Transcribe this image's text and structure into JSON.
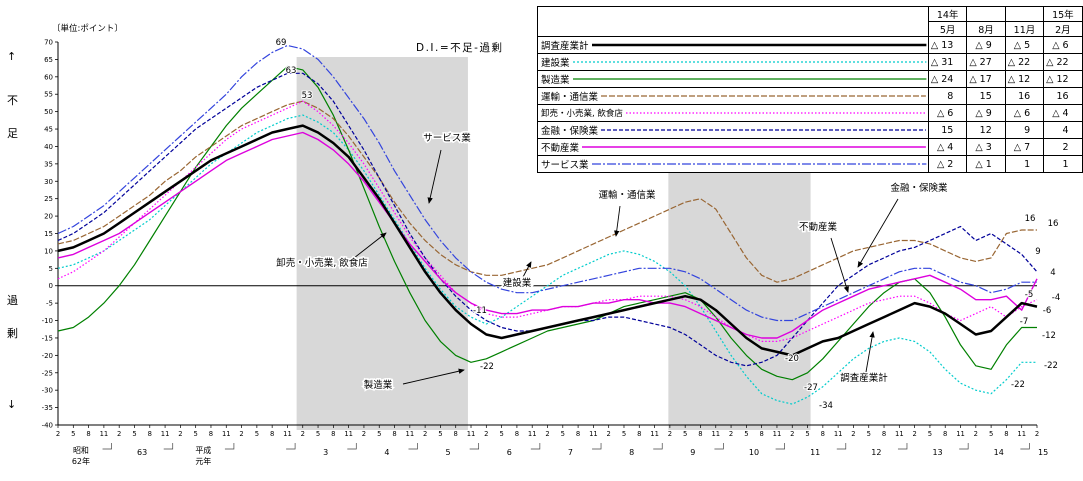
{
  "labels": {
    "unit": "〔単位:ポイント〕",
    "di_note": "D.I.=不足-過剰",
    "axis_direction": [
      "↑",
      "不",
      "足",
      "過",
      "剰",
      "↓"
    ]
  },
  "table": {
    "col_headers": {
      "year_left": "14年",
      "m1": "5月",
      "m2": "8月",
      "m3": "11月",
      "year_right": "15年",
      "m4": "2月"
    },
    "rows": [
      {
        "name": "調査産業計",
        "values": [
          "△ 13",
          "△ 9",
          "△ 5",
          "△ 6"
        ]
      },
      {
        "name": "建設業",
        "values": [
          "△ 31",
          "△ 27",
          "△ 22",
          "△ 22"
        ]
      },
      {
        "name": "製造業",
        "values": [
          "△ 24",
          "△ 17",
          "△ 12",
          "△ 12"
        ]
      },
      {
        "name": "運輸・通信業",
        "values": [
          "8",
          "15",
          "16",
          "16"
        ]
      },
      {
        "name": "卸売・小売業, 飲食店",
        "values": [
          "△ 6",
          "△ 9",
          "△ 6",
          "△ 4"
        ]
      },
      {
        "name": "金融・保険業",
        "values": [
          "15",
          "12",
          "9",
          "4"
        ]
      },
      {
        "name": "不動産業",
        "values": [
          "△ 4",
          "△ 3",
          "△ 7",
          "2"
        ]
      },
      {
        "name": "サービス業",
        "values": [
          "△ 2",
          "△ 1",
          "1",
          "1"
        ]
      }
    ]
  },
  "chart_data": {
    "type": "line",
    "title": "D.I.=不足-過剰",
    "ylabel": "ポイント",
    "y_axis": {
      "min": -40,
      "max": 70,
      "step": 5
    },
    "x_axis": {
      "count": 65,
      "quarters": [
        "2",
        "5",
        "8",
        "11"
      ],
      "start": "昭和62年2月",
      "end": "平成15年2月",
      "era_labels": [
        {
          "t": "昭和",
          "t2": "62年",
          "i": 1.5
        },
        {
          "t": "63",
          "i": 5.5
        },
        {
          "t": "平成",
          "t2": "元年",
          "i": 9.5
        },
        {
          "t": "3",
          "i": 17.5
        },
        {
          "t": "4",
          "i": 21.5
        },
        {
          "t": "5",
          "i": 25.5
        },
        {
          "t": "6",
          "i": 29.5
        },
        {
          "t": "7",
          "i": 33.5
        },
        {
          "t": "8",
          "i": 37.5
        },
        {
          "t": "9",
          "i": 41.5
        },
        {
          "t": "10",
          "i": 45.5
        },
        {
          "t": "11",
          "i": 49.5
        },
        {
          "t": "12",
          "i": 53.5
        },
        {
          "t": "13",
          "i": 57.5
        },
        {
          "t": "14",
          "i": 61.5
        },
        {
          "t": "15",
          "i": 64.4
        }
      ]
    },
    "bands": [
      {
        "from": 15.6,
        "to": 26.8
      },
      {
        "from": 39.9,
        "to": 49.2
      }
    ],
    "colors": {
      "band": "#d8d8d8",
      "axis": "#000000"
    },
    "series": [
      {
        "key": "total",
        "name": "調査産業計",
        "color": "#000000",
        "dash": "",
        "width": 2.5,
        "values": [
          10,
          11,
          13,
          15,
          18,
          21,
          24,
          27,
          30,
          33,
          36,
          38,
          40,
          42,
          44,
          45,
          46,
          44,
          41,
          37,
          31,
          25,
          18,
          11,
          4,
          -2,
          -7,
          -11,
          -14,
          -15,
          -14,
          -13,
          -12,
          -11,
          -10,
          -9,
          -8,
          -7,
          -6,
          -5,
          -4,
          -3,
          -4,
          -7,
          -11,
          -15,
          -18,
          -19,
          -20,
          -18,
          -16,
          -15,
          -13,
          -11,
          -9,
          -7,
          -5,
          -6,
          -8,
          -11,
          -14,
          -13,
          -9,
          -5,
          -6
        ]
      },
      {
        "key": "construction",
        "name": "建設業",
        "color": "#00cccc",
        "dash": "2,2",
        "width": 1.2,
        "values": [
          5,
          6,
          8,
          10,
          13,
          16,
          19,
          23,
          27,
          31,
          35,
          38,
          41,
          44,
          46,
          48,
          49,
          47,
          44,
          39,
          33,
          26,
          19,
          12,
          5,
          -1,
          -6,
          -9,
          -11,
          -9,
          -6,
          -3,
          0,
          3,
          5,
          7,
          9,
          10,
          9,
          7,
          4,
          0,
          -6,
          -13,
          -20,
          -26,
          -31,
          -33,
          -34,
          -32,
          -29,
          -25,
          -21,
          -18,
          -16,
          -15,
          -16,
          -19,
          -24,
          -28,
          -30,
          -31,
          -27,
          -22,
          -22
        ]
      },
      {
        "key": "manufacturing",
        "name": "製造業",
        "color": "#008000",
        "dash": "",
        "width": 1.2,
        "values": [
          -13,
          -12,
          -9,
          -5,
          0,
          6,
          13,
          20,
          27,
          34,
          40,
          46,
          51,
          55,
          59,
          63,
          62,
          57,
          49,
          39,
          28,
          17,
          7,
          -2,
          -10,
          -16,
          -20,
          -22,
          -21,
          -19,
          -17,
          -15,
          -13,
          -12,
          -11,
          -10,
          -8,
          -6,
          -5,
          -4,
          -3,
          -2,
          -4,
          -9,
          -15,
          -20,
          -24,
          -26,
          -27,
          -25,
          -21,
          -16,
          -11,
          -6,
          -2,
          1,
          2,
          -2,
          -9,
          -17,
          -23,
          -24,
          -17,
          -12,
          -12
        ]
      },
      {
        "key": "transport-communication",
        "name": "運輸・通信業",
        "color": "#996633",
        "dash": "6,2",
        "width": 1.2,
        "values": [
          12,
          13,
          15,
          17,
          20,
          23,
          26,
          30,
          33,
          37,
          40,
          43,
          46,
          48,
          50,
          52,
          53,
          51,
          48,
          43,
          37,
          31,
          24,
          18,
          13,
          9,
          6,
          4,
          3,
          3,
          4,
          5,
          6,
          8,
          10,
          12,
          14,
          16,
          18,
          20,
          22,
          24,
          25,
          22,
          15,
          8,
          3,
          1,
          2,
          4,
          6,
          8,
          10,
          11,
          12,
          13,
          13,
          12,
          10,
          8,
          7,
          8,
          15,
          16,
          16
        ]
      },
      {
        "key": "wholesale-retail-restaurants",
        "name": "卸売・小売業, 飲食店",
        "color": "#ff00ff",
        "dash": "1.5,2",
        "width": 1.2,
        "values": [
          2,
          4,
          7,
          10,
          14,
          18,
          22,
          26,
          30,
          34,
          38,
          42,
          45,
          47,
          49,
          51,
          53,
          50,
          46,
          41,
          35,
          28,
          21,
          14,
          8,
          3,
          -2,
          -5,
          -8,
          -9,
          -9,
          -8,
          -7,
          -6,
          -6,
          -5,
          -4,
          -4,
          -3,
          -3,
          -3,
          -4,
          -6,
          -9,
          -12,
          -14,
          -16,
          -16,
          -15,
          -13,
          -11,
          -9,
          -7,
          -5,
          -4,
          -3,
          -3,
          -5,
          -8,
          -10,
          -8,
          -6,
          -9,
          -6,
          -4
        ]
      },
      {
        "key": "finance-insurance",
        "name": "金融・保険業",
        "color": "#000099",
        "dash": "4,2",
        "width": 1.2,
        "values": [
          13,
          15,
          18,
          21,
          25,
          29,
          33,
          37,
          41,
          45,
          48,
          51,
          54,
          57,
          59,
          61,
          61,
          58,
          53,
          46,
          39,
          31,
          23,
          15,
          8,
          2,
          -3,
          -7,
          -10,
          -12,
          -13,
          -13,
          -12,
          -11,
          -10,
          -10,
          -9,
          -9,
          -10,
          -11,
          -12,
          -14,
          -17,
          -20,
          -22,
          -23,
          -22,
          -20,
          -15,
          -10,
          -5,
          0,
          3,
          6,
          8,
          10,
          11,
          13,
          15,
          17,
          13,
          15,
          12,
          9,
          4
        ]
      },
      {
        "key": "real-estate",
        "name": "不動産業",
        "color": "#dd00dd",
        "dash": "",
        "width": 1.4,
        "values": [
          8,
          9,
          11,
          13,
          15,
          18,
          21,
          24,
          27,
          30,
          33,
          36,
          38,
          40,
          42,
          43,
          44,
          42,
          39,
          35,
          30,
          24,
          18,
          12,
          7,
          2,
          -2,
          -5,
          -7,
          -8,
          -8,
          -7,
          -7,
          -6,
          -6,
          -5,
          -5,
          -4,
          -4,
          -5,
          -5,
          -6,
          -8,
          -10,
          -12,
          -14,
          -15,
          -15,
          -13,
          -10,
          -7,
          -5,
          -3,
          -1,
          0,
          1,
          2,
          3,
          1,
          -1,
          -4,
          -4,
          -3,
          -7,
          2
        ]
      },
      {
        "key": "services",
        "name": "サービス業",
        "color": "#3344dd",
        "dash": "9,2,2,2",
        "width": 1.2,
        "values": [
          15,
          17,
          20,
          23,
          27,
          31,
          35,
          39,
          43,
          47,
          51,
          55,
          60,
          64,
          67,
          69,
          68,
          65,
          60,
          54,
          48,
          41,
          33,
          26,
          19,
          13,
          8,
          4,
          1,
          -1,
          -2,
          -2,
          -1,
          0,
          1,
          2,
          3,
          4,
          5,
          5,
          5,
          4,
          2,
          -1,
          -4,
          -7,
          -9,
          -10,
          -10,
          -8,
          -6,
          -4,
          -2,
          0,
          2,
          4,
          5,
          5,
          3,
          1,
          0,
          -2,
          -1,
          1,
          1
        ]
      }
    ],
    "point_labels": [
      {
        "t": "69",
        "x": 281,
        "y": 45
      },
      {
        "t": "63",
        "x": 291,
        "y": 73
      },
      {
        "t": "53",
        "x": 307,
        "y": 98
      },
      {
        "t": "-11",
        "x": 480,
        "y": 313
      },
      {
        "t": "-22",
        "x": 487,
        "y": 369
      },
      {
        "t": "-20",
        "x": 792,
        "y": 361
      },
      {
        "t": "-27",
        "x": 811,
        "y": 390
      },
      {
        "t": "-34",
        "x": 826,
        "y": 408
      },
      {
        "t": "16",
        "x": 1030,
        "y": 221
      },
      {
        "t": "16",
        "x": 1053,
        "y": 226
      },
      {
        "t": "9",
        "x": 1038,
        "y": 254
      },
      {
        "t": "4",
        "x": 1053,
        "y": 275
      },
      {
        "t": "-5",
        "x": 1029,
        "y": 297
      },
      {
        "t": "-4",
        "x": 1056,
        "y": 300
      },
      {
        "t": "-6",
        "x": 1047,
        "y": 313
      },
      {
        "t": "-7",
        "x": 1024,
        "y": 324
      },
      {
        "t": "-12",
        "x": 1049,
        "y": 338
      },
      {
        "t": "-22",
        "x": 1051,
        "y": 368
      },
      {
        "t": "-22",
        "x": 1018,
        "y": 387
      }
    ],
    "annotations": [
      {
        "key": "services",
        "text": "サービス業",
        "tx": 447,
        "ty": 141,
        "x1": 441,
        "y1": 150,
        "x2": 429,
        "y2": 203
      },
      {
        "key": "wholesale-retail-restaurants",
        "text": "卸売・小売業, 飲食店",
        "tx": 322,
        "ty": 266,
        "x1": 354,
        "y1": 258,
        "x2": 386,
        "y2": 233
      },
      {
        "key": "manufacturing",
        "text": "製造業",
        "tx": 378,
        "ty": 388,
        "x1": 403,
        "y1": 384,
        "x2": 464,
        "y2": 370
      },
      {
        "key": "construction",
        "text": "建設業",
        "tx": 517,
        "ty": 286,
        "x1": 523,
        "y1": 277,
        "x2": 531,
        "y2": 262
      },
      {
        "key": "transport-communication",
        "text": "運輸・通信業",
        "tx": 627,
        "ty": 198,
        "x1": 620,
        "y1": 206,
        "x2": 616,
        "y2": 236
      },
      {
        "key": "finance-insurance",
        "text": "金融・保険業",
        "tx": 919,
        "ty": 191,
        "x1": 898,
        "y1": 199,
        "x2": 858,
        "y2": 267
      },
      {
        "key": "real-estate",
        "text": "不動産業",
        "tx": 818,
        "ty": 230,
        "x1": 831,
        "y1": 238,
        "x2": 848,
        "y2": 292
      },
      {
        "key": "total",
        "text": "調査産業計",
        "tx": 864,
        "ty": 381,
        "x1": 866,
        "y1": 372,
        "x2": 873,
        "y2": 332
      }
    ]
  }
}
